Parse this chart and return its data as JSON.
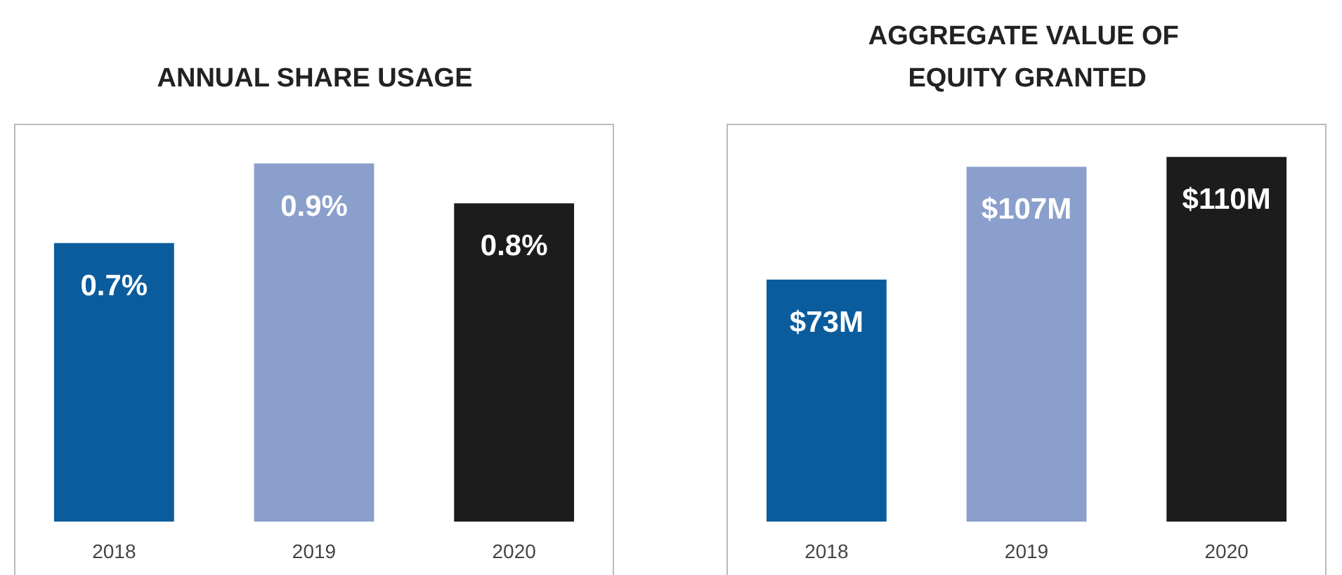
{
  "chart_data": [
    {
      "type": "bar",
      "title": "ANNUAL SHARE USAGE",
      "categories": [
        "2018",
        "2019",
        "2020"
      ],
      "values": [
        0.7,
        0.9,
        0.8
      ],
      "value_labels": [
        "0.7%",
        "0.9%",
        "0.8%"
      ],
      "colors": [
        "#0b5c9c",
        "#8a9fcb",
        "#1c1c1c"
      ]
    },
    {
      "type": "bar",
      "title": "AGGREGATE VALUE OF EQUITY GRANTED",
      "categories": [
        "2018",
        "2019",
        "2020"
      ],
      "values": [
        73,
        107,
        110
      ],
      "value_labels": [
        "$73M",
        "$107M",
        "$110M"
      ],
      "colors": [
        "#0b5c9c",
        "#8a9fcb",
        "#1c1c1c"
      ]
    }
  ]
}
